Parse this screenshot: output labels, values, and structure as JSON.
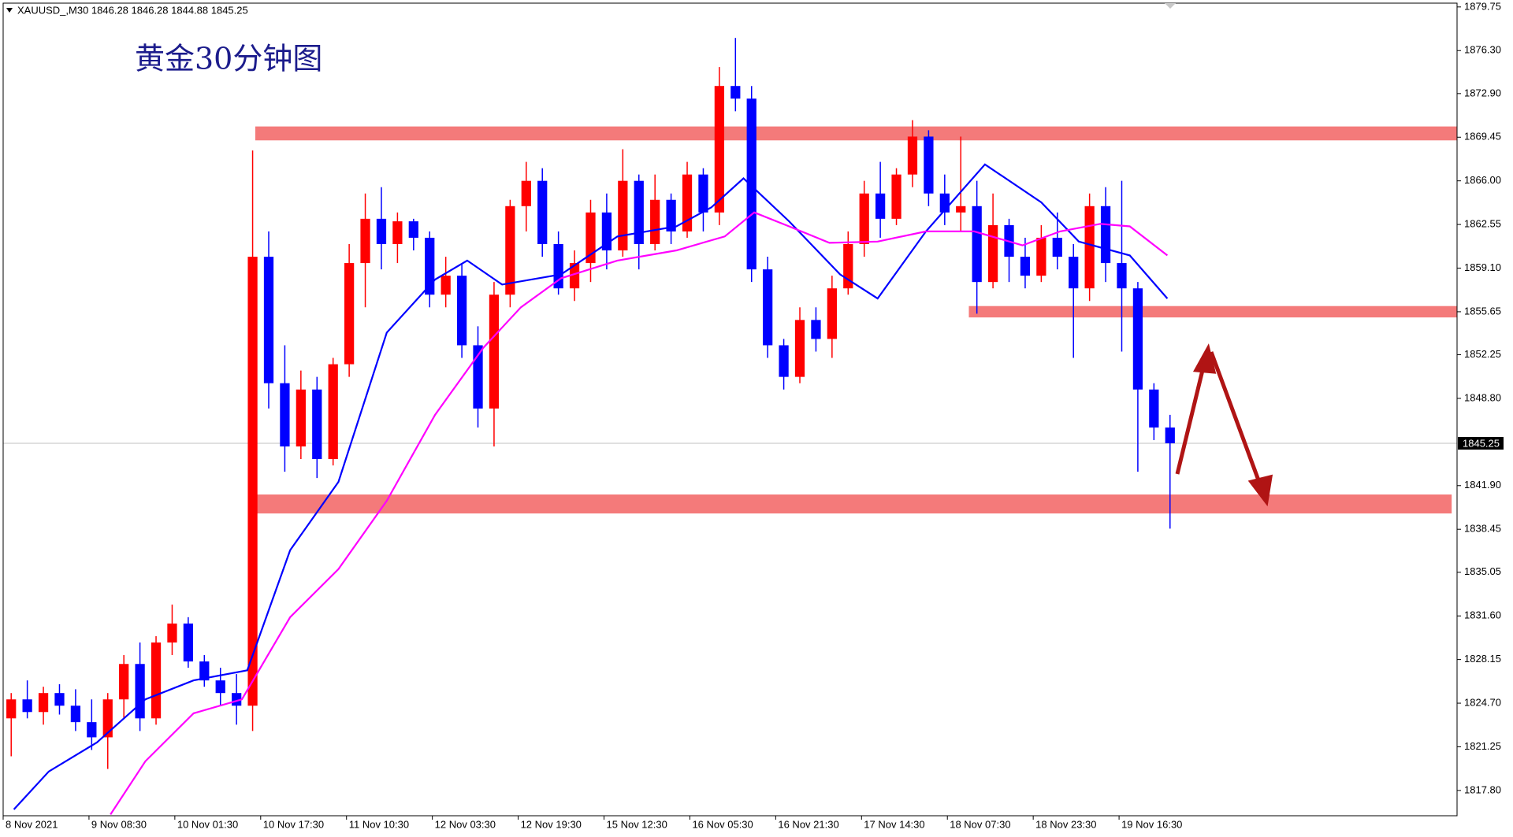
{
  "chart_data": {
    "type": "candlestick",
    "header": "XAUUSD_,M30  1846.28 1846.28 1844.88 1845.25",
    "title": "黄金30分钟图",
    "up_color": "#ff0000",
    "down_color": "#0000ff",
    "xlim": [
      0,
      542
    ],
    "ylim": [
      1815.8,
      1880.05
    ],
    "xticks": [
      {
        "value": 0,
        "label": "8 Nov 2021"
      },
      {
        "value": 32,
        "label": "9 Nov 08:30"
      },
      {
        "value": 64,
        "label": "10 Nov 01:30"
      },
      {
        "value": 96,
        "label": "10 Nov 17:30"
      },
      {
        "value": 128,
        "label": "11 Nov 10:30"
      },
      {
        "value": 160,
        "label": "12 Nov 03:30"
      },
      {
        "value": 192,
        "label": "12 Nov 19:30"
      },
      {
        "value": 224,
        "label": "15 Nov 12:30"
      },
      {
        "value": 256,
        "label": "16 Nov 05:30"
      },
      {
        "value": 288,
        "label": "16 Nov 21:30"
      },
      {
        "value": 320,
        "label": "17 Nov 14:30"
      },
      {
        "value": 352,
        "label": "18 Nov 07:30"
      },
      {
        "value": 384,
        "label": "18 Nov 23:30"
      },
      {
        "value": 416,
        "label": "19 Nov 16:30"
      }
    ],
    "yticks": [
      1879.75,
      {
        "value": 1876.3,
        "label": "1876.30"
      },
      {
        "value": 1872.9,
        "label": "1872.90"
      },
      1869.45,
      {
        "value": 1866,
        "label": "1866.00"
      },
      1862.55,
      {
        "value": 1859.1,
        "label": "1859.10"
      },
      1855.65,
      1852.25,
      {
        "value": 1848.8,
        "label": "1848.80"
      },
      {
        "value": 1841.9,
        "label": "1841.90"
      },
      1838.45,
      1835.05,
      {
        "value": 1831.6,
        "label": "1831.60"
      },
      1828.15,
      {
        "value": 1824.7,
        "label": "1824.70"
      },
      1821.25,
      {
        "value": 1817.8,
        "label": "1817.80"
      }
    ],
    "last_price": 1845.25,
    "candles": {
      "x": [
        0,
        6,
        12,
        18,
        24,
        30,
        36,
        42,
        48,
        54,
        60,
        66,
        72,
        78,
        84,
        90,
        96,
        102,
        108,
        114,
        120,
        126,
        132,
        138,
        144,
        150,
        156,
        162,
        168,
        174,
        180,
        186,
        192,
        198,
        204,
        210,
        216,
        222,
        228,
        234,
        240,
        246,
        252,
        258,
        264,
        270,
        276,
        282,
        288,
        294,
        300,
        306,
        312,
        318,
        324,
        330,
        336,
        342,
        348,
        354,
        360,
        366,
        372,
        378,
        384,
        390,
        396,
        402,
        408,
        414,
        420,
        426,
        432
      ],
      "open": [
        1823.5,
        1825.0,
        1824.0,
        1825.5,
        1824.5,
        1823.2,
        1822.0,
        1825.0,
        1827.8,
        1823.5,
        1829.5,
        1831.0,
        1828.0,
        1826.5,
        1825.5,
        1824.5,
        1860.0,
        1850.0,
        1845.0,
        1849.5,
        1844.0,
        1851.5,
        1859.5,
        1863.0,
        1861.0,
        1862.8,
        1861.5,
        1857.0,
        1858.5,
        1853.0,
        1848.0,
        1857.0,
        1864.0,
        1866.0,
        1861.0,
        1857.5,
        1859.5,
        1863.5,
        1860.5,
        1866.0,
        1861.0,
        1864.5,
        1862.0,
        1866.5,
        1863.5,
        1873.5,
        1872.5,
        1859.0,
        1853.0,
        1850.5,
        1855.0,
        1853.5,
        1857.5,
        1861.0,
        1865.0,
        1863.0,
        1866.5,
        1869.5,
        1865.0,
        1863.5,
        1864.0,
        1858.0,
        1862.5,
        1860.0,
        1858.5,
        1861.5,
        1860.0,
        1857.5,
        1864.0,
        1859.5,
        1857.5,
        1849.5,
        1846.5
      ],
      "high": [
        1825.5,
        1826.5,
        1826.0,
        1826.2,
        1825.8,
        1825.0,
        1825.5,
        1828.5,
        1829.5,
        1830.0,
        1832.5,
        1831.5,
        1828.5,
        1827.5,
        1827.0,
        1868.4,
        1862.0,
        1853.0,
        1851.0,
        1850.5,
        1852.0,
        1861.0,
        1865.0,
        1865.5,
        1863.5,
        1863.0,
        1862.0,
        1860.0,
        1859.5,
        1854.5,
        1858.0,
        1864.5,
        1867.5,
        1867.0,
        1862.0,
        1860.5,
        1864.5,
        1865.0,
        1868.5,
        1866.5,
        1866.5,
        1865.0,
        1867.5,
        1867.0,
        1875.0,
        1877.3,
        1873.5,
        1860.0,
        1853.5,
        1856.0,
        1856.0,
        1858.5,
        1862.0,
        1866.0,
        1867.5,
        1867.0,
        1870.8,
        1870.0,
        1866.5,
        1869.5,
        1866.0,
        1865.0,
        1863.0,
        1861.5,
        1862.5,
        1863.5,
        1861.0,
        1865.0,
        1865.5,
        1866.0,
        1858.0,
        1850.0,
        1847.5
      ],
      "low": [
        1820.5,
        1823.5,
        1823.0,
        1823.8,
        1822.5,
        1821.0,
        1819.5,
        1823.5,
        1822.5,
        1823.0,
        1828.5,
        1827.5,
        1826.0,
        1824.5,
        1823.0,
        1822.5,
        1848.0,
        1843.0,
        1844.0,
        1842.5,
        1843.5,
        1850.5,
        1856.0,
        1859.0,
        1859.5,
        1860.5,
        1856.0,
        1856.0,
        1852.0,
        1846.5,
        1845.0,
        1856.0,
        1862.0,
        1860.0,
        1857.0,
        1856.5,
        1858.0,
        1859.0,
        1860.0,
        1859.0,
        1860.5,
        1861.0,
        1861.5,
        1862.0,
        1862.5,
        1871.5,
        1858.0,
        1852.0,
        1849.5,
        1850.0,
        1852.5,
        1852.0,
        1857.0,
        1860.0,
        1861.5,
        1862.5,
        1865.5,
        1864.0,
        1862.5,
        1862.0,
        1855.5,
        1857.5,
        1858.0,
        1857.5,
        1858.0,
        1859.0,
        1852.0,
        1856.5,
        1858.0,
        1852.5,
        1843.0,
        1845.5,
        1838.5
      ],
      "close": [
        1825.0,
        1824.0,
        1825.5,
        1824.5,
        1823.2,
        1822.0,
        1825.0,
        1827.8,
        1823.5,
        1829.5,
        1831.0,
        1828.0,
        1826.5,
        1825.5,
        1824.5,
        1860.0,
        1850.0,
        1845.0,
        1849.5,
        1844.0,
        1851.5,
        1859.5,
        1863.0,
        1861.0,
        1862.8,
        1861.5,
        1857.0,
        1858.5,
        1853.0,
        1848.0,
        1857.0,
        1864.0,
        1866.0,
        1861.0,
        1857.5,
        1859.5,
        1863.5,
        1860.5,
        1866.0,
        1861.0,
        1864.5,
        1862.0,
        1866.5,
        1863.5,
        1873.5,
        1872.5,
        1859.0,
        1853.0,
        1850.5,
        1855.0,
        1853.5,
        1857.5,
        1861.0,
        1865.0,
        1863.0,
        1866.5,
        1869.5,
        1865.0,
        1863.5,
        1864.0,
        1858.0,
        1862.5,
        1860.0,
        1858.5,
        1861.5,
        1860.0,
        1857.5,
        1864.0,
        1859.5,
        1857.5,
        1849.5,
        1846.5,
        1845.25
      ]
    },
    "moving_averages": [
      {
        "color": "#0000ff",
        "x": [
          4,
          17,
          35,
          53,
          71,
          91,
          107,
          125,
          143,
          161,
          173,
          186,
          208,
          229,
          251,
          264,
          276,
          293,
          312,
          326,
          344,
          366,
          387,
          401,
          420,
          434
        ],
        "values": [
          1816.3,
          1819.3,
          1821.6,
          1825.0,
          1826.5,
          1827.3,
          1836.8,
          1842.2,
          1854.0,
          1858.2,
          1859.7,
          1857.8,
          1858.6,
          1861.6,
          1862.4,
          1863.9,
          1866.2,
          1862.8,
          1858.6,
          1856.7,
          1862.0,
          1867.3,
          1864.3,
          1861.2,
          1860.1,
          1856.7
        ]
      },
      {
        "color": "#ff00ff",
        "x": [
          40,
          53,
          71,
          89,
          107,
          125,
          143,
          161,
          179,
          193,
          208,
          229,
          251,
          269,
          280,
          293,
          308,
          326,
          344,
          362,
          380,
          394,
          409,
          420,
          434
        ],
        "values": [
          1815.9,
          1820.1,
          1823.9,
          1825.0,
          1831.5,
          1835.3,
          1840.7,
          1847.5,
          1852.8,
          1856.0,
          1858.3,
          1859.7,
          1860.5,
          1861.6,
          1863.5,
          1862.4,
          1861.1,
          1861.2,
          1862.0,
          1862.0,
          1860.9,
          1862.0,
          1862.6,
          1862.4,
          1860.1
        ]
      }
    ],
    "zones": [
      {
        "x1": 94,
        "low": 1869.2,
        "high": 1870.3
      },
      {
        "x1": 360,
        "low": 1855.2,
        "high": 1856.1
      },
      {
        "x1": 92,
        "x2": 540,
        "low": 1839.7,
        "high": 1841.2
      }
    ],
    "zone_color": "#f47a7a"
  }
}
